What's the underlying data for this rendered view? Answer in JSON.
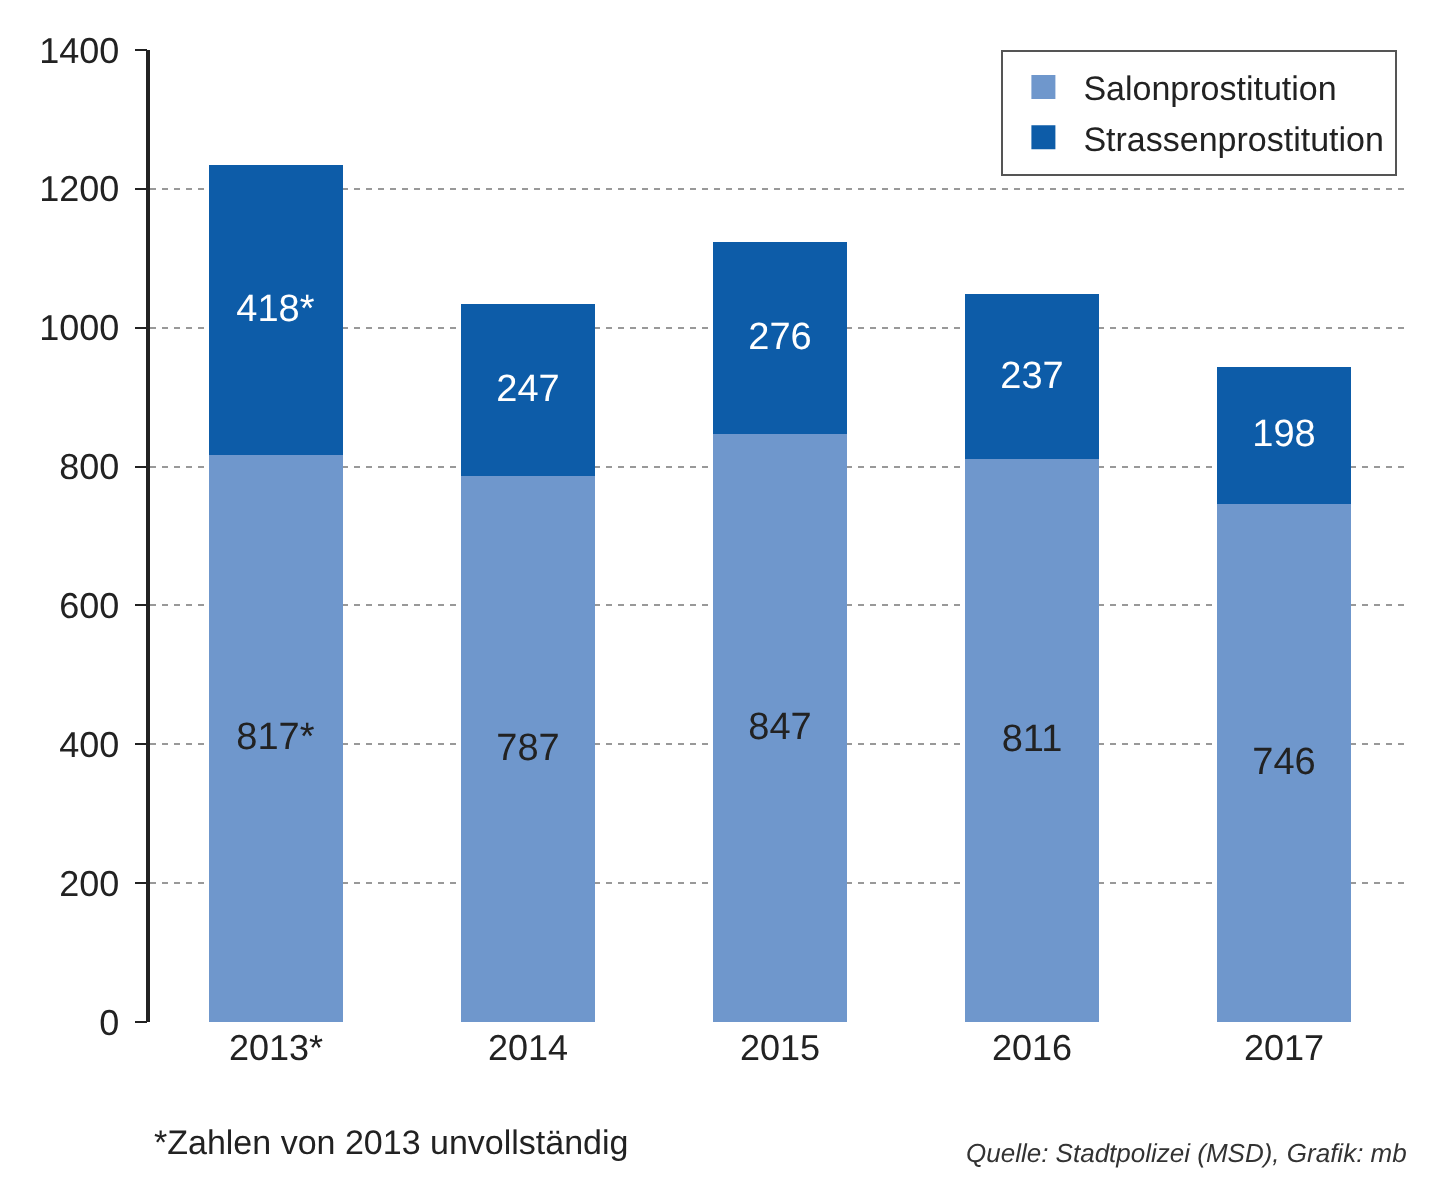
{
  "chart_data": {
    "type": "bar",
    "stacked": true,
    "categories": [
      "2013*",
      "2014",
      "2015",
      "2016",
      "2017"
    ],
    "series": [
      {
        "name": "Salonprostitution",
        "color": "#6f97cc",
        "values": [
          817,
          787,
          847,
          811,
          746
        ],
        "value_labels": [
          "817*",
          "787",
          "847",
          "811",
          "746"
        ]
      },
      {
        "name": "Strassenprostitution",
        "color": "#0d5ca8",
        "values": [
          418,
          247,
          276,
          237,
          198
        ],
        "value_labels": [
          "418*",
          "247",
          "276",
          "237",
          "198"
        ]
      }
    ],
    "ylim": [
      0,
      1400
    ],
    "yticks": [
      0,
      200,
      400,
      600,
      800,
      1000,
      1200,
      1400
    ],
    "grid": "y",
    "legend": "top right",
    "annotations": [
      "*Zahlen von 2013 unvollständig",
      "Quelle: Stadtpolizei (MSD), Grafik: mb"
    ]
  }
}
